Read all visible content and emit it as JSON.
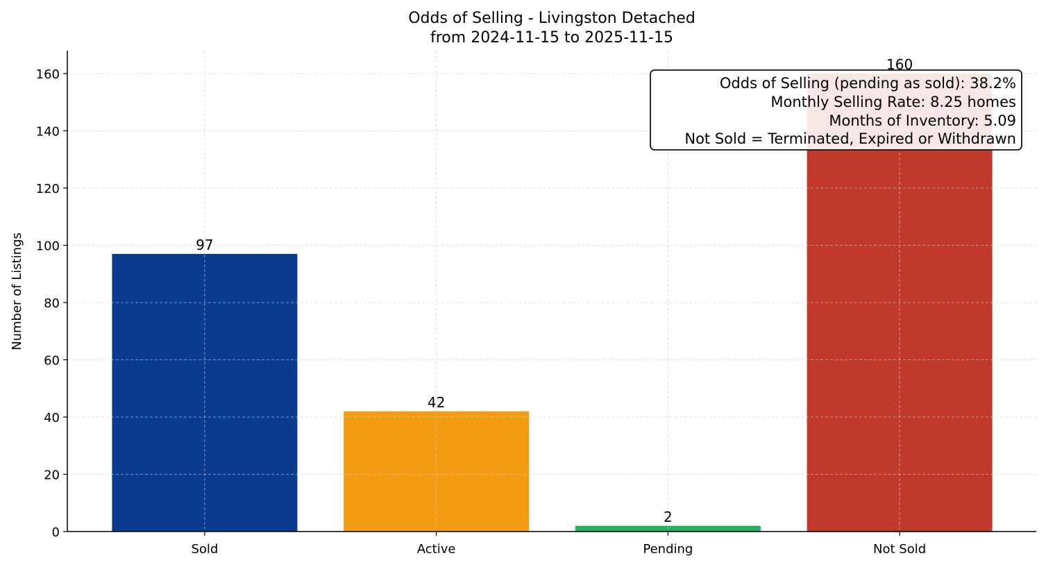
{
  "chart_data": {
    "type": "bar",
    "title": "Odds of Selling - Livingston Detached",
    "subtitle": "from 2024-11-15 to 2025-11-15",
    "xlabel": "",
    "ylabel": "Number of Listings",
    "categories": [
      "Sold",
      "Active",
      "Pending",
      "Not Sold"
    ],
    "values": [
      97,
      42,
      2,
      160
    ],
    "colors": [
      "#0b3b8f",
      "#f39c12",
      "#27ae60",
      "#c0392b"
    ],
    "ylim": [
      0,
      168
    ],
    "yticks": [
      0,
      20,
      40,
      60,
      80,
      100,
      120,
      140,
      160
    ],
    "grid": true,
    "annotation": {
      "placement": "top-right",
      "lines": [
        "Odds of Selling (pending as sold): 38.2%",
        "Monthly Selling Rate: 8.25 homes",
        "Months of Inventory: 5.09",
        "Not Sold = Terminated, Expired or Withdrawn"
      ]
    }
  }
}
